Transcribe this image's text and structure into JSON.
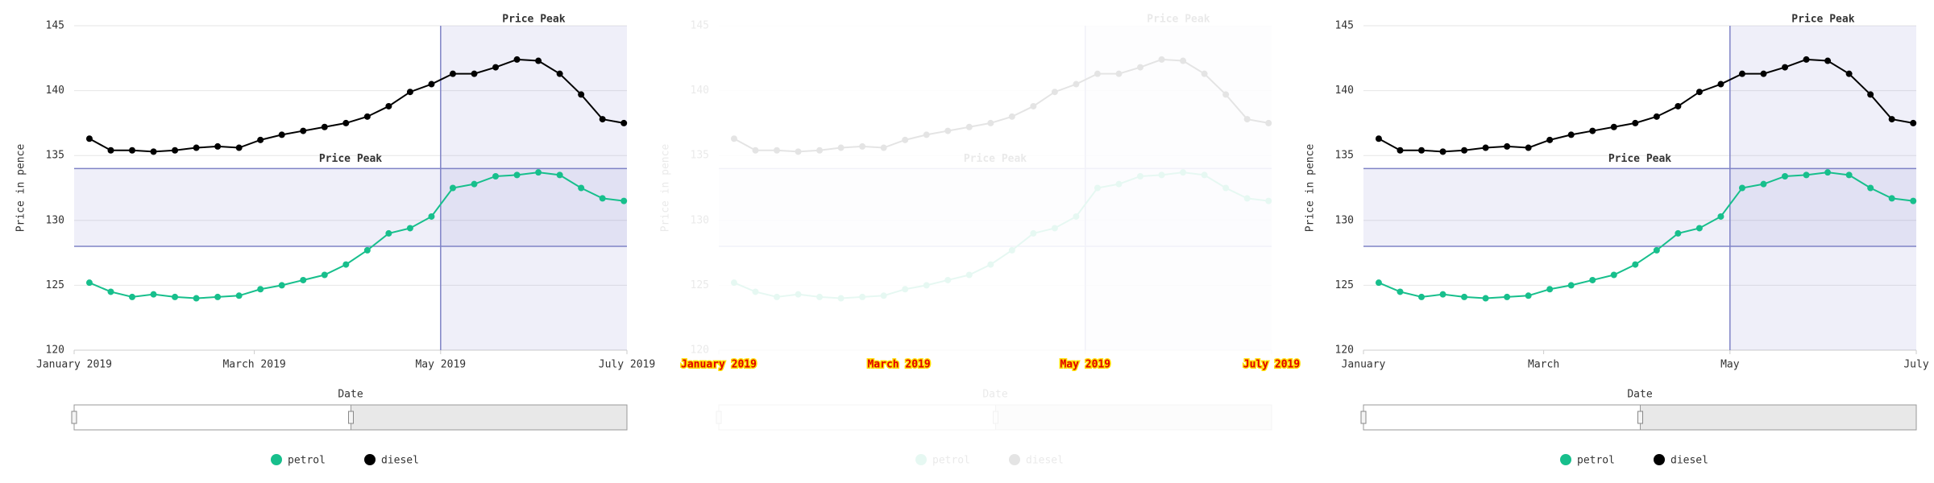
{
  "chart_data": [
    {
      "type": "line",
      "ylabel": "Price in pence",
      "xlabel": "Date",
      "x": [
        "2019-01-06",
        "2019-01-13",
        "2019-01-20",
        "2019-01-27",
        "2019-02-03",
        "2019-02-10",
        "2019-02-17",
        "2019-02-24",
        "2019-03-03",
        "2019-03-10",
        "2019-03-17",
        "2019-03-24",
        "2019-03-31",
        "2019-04-07",
        "2019-04-14",
        "2019-04-21",
        "2019-04-28",
        "2019-05-05",
        "2019-05-12",
        "2019-05-19",
        "2019-05-26",
        "2019-06-02",
        "2019-06-09",
        "2019-06-16",
        "2019-06-23",
        "2019-06-30"
      ],
      "series": [
        {
          "name": "petrol",
          "color": "#17bf8c",
          "values": [
            125.2,
            124.5,
            124.1,
            124.3,
            124.1,
            124.0,
            124.1,
            124.2,
            124.7,
            125.0,
            125.4,
            125.8,
            126.6,
            127.7,
            129.0,
            129.4,
            130.3,
            132.5,
            132.8,
            133.4,
            133.5,
            133.7,
            133.5,
            132.5,
            131.7,
            131.5
          ]
        },
        {
          "name": "diesel",
          "color": "#000000",
          "values": [
            136.3,
            135.4,
            135.4,
            135.3,
            135.4,
            135.6,
            135.7,
            135.6,
            136.2,
            136.6,
            136.9,
            137.2,
            137.5,
            138.0,
            138.8,
            139.9,
            140.5,
            141.3,
            141.3,
            141.8,
            142.4,
            142.3,
            141.3,
            139.7,
            137.8,
            137.5
          ]
        }
      ],
      "xlim": [
        "2019-01-01",
        "2019-07-01"
      ],
      "xticks": [
        {
          "value": "2019-01-01",
          "label": "January 2019"
        },
        {
          "value": "2019-03-01",
          "label": "March 2019"
        },
        {
          "value": "2019-05-01",
          "label": "May 2019"
        },
        {
          "value": "2019-07-01",
          "label": "July 2019"
        }
      ],
      "ylim": [
        120,
        145
      ],
      "yticks": [
        120,
        125,
        130,
        135,
        140,
        145
      ],
      "grid": true,
      "annotations": [
        {
          "type": "x-band",
          "from": "2019-05-01",
          "to": "2019-07-01",
          "label": "Price Peak"
        },
        {
          "type": "y-band",
          "from": 128,
          "to": 134,
          "label": "Price Peak"
        }
      ]
    },
    {
      "type": "line",
      "ylabel": "Price in pence",
      "xlabel": "Date",
      "x": [
        "2019-01-06",
        "2019-01-13",
        "2019-01-20",
        "2019-01-27",
        "2019-02-03",
        "2019-02-10",
        "2019-02-17",
        "2019-02-24",
        "2019-03-03",
        "2019-03-10",
        "2019-03-17",
        "2019-03-24",
        "2019-03-31",
        "2019-04-07",
        "2019-04-14",
        "2019-04-21",
        "2019-04-28",
        "2019-05-05",
        "2019-05-12",
        "2019-05-19",
        "2019-05-26",
        "2019-06-02",
        "2019-06-09",
        "2019-06-16",
        "2019-06-23",
        "2019-06-30"
      ],
      "series": [
        {
          "name": "petrol",
          "color": "#17bf8c",
          "values": [
            125.2,
            124.5,
            124.1,
            124.3,
            124.1,
            124.0,
            124.1,
            124.2,
            124.7,
            125.0,
            125.4,
            125.8,
            126.6,
            127.7,
            129.0,
            129.4,
            130.3,
            132.5,
            132.8,
            133.4,
            133.5,
            133.7,
            133.5,
            132.5,
            131.7,
            131.5
          ]
        },
        {
          "name": "diesel",
          "color": "#000000",
          "values": [
            136.3,
            135.4,
            135.4,
            135.3,
            135.4,
            135.6,
            135.7,
            135.6,
            136.2,
            136.6,
            136.9,
            137.2,
            137.5,
            138.0,
            138.8,
            139.9,
            140.5,
            141.3,
            141.3,
            141.8,
            142.4,
            142.3,
            141.3,
            139.7,
            137.8,
            137.5
          ]
        }
      ],
      "xlim": [
        "2019-01-01",
        "2019-07-01"
      ],
      "xticks": [
        {
          "value": "2019-01-01",
          "label": "January 2019"
        },
        {
          "value": "2019-03-01",
          "label": "March 2019"
        },
        {
          "value": "2019-05-01",
          "label": "May 2019"
        },
        {
          "value": "2019-07-01",
          "label": "July 2019"
        }
      ],
      "ylim": [
        120,
        145
      ],
      "yticks": [
        120,
        125,
        130,
        135,
        140,
        145
      ],
      "grid": true,
      "annotations": [
        {
          "type": "x-band",
          "from": "2019-05-01",
          "to": "2019-07-01",
          "label": "Price Peak"
        },
        {
          "type": "y-band",
          "from": 128,
          "to": 134,
          "label": "Price Peak"
        }
      ]
    },
    {
      "type": "line",
      "ylabel": "Price in pence",
      "xlabel": "Date",
      "x": [
        "2019-01-06",
        "2019-01-13",
        "2019-01-20",
        "2019-01-27",
        "2019-02-03",
        "2019-02-10",
        "2019-02-17",
        "2019-02-24",
        "2019-03-03",
        "2019-03-10",
        "2019-03-17",
        "2019-03-24",
        "2019-03-31",
        "2019-04-07",
        "2019-04-14",
        "2019-04-21",
        "2019-04-28",
        "2019-05-05",
        "2019-05-12",
        "2019-05-19",
        "2019-05-26",
        "2019-06-02",
        "2019-06-09",
        "2019-06-16",
        "2019-06-23",
        "2019-06-30"
      ],
      "series": [
        {
          "name": "petrol",
          "color": "#17bf8c",
          "values": [
            125.2,
            124.5,
            124.1,
            124.3,
            124.1,
            124.0,
            124.1,
            124.2,
            124.7,
            125.0,
            125.4,
            125.8,
            126.6,
            127.7,
            129.0,
            129.4,
            130.3,
            132.5,
            132.8,
            133.4,
            133.5,
            133.7,
            133.5,
            132.5,
            131.7,
            131.5
          ]
        },
        {
          "name": "diesel",
          "color": "#000000",
          "values": [
            136.3,
            135.4,
            135.4,
            135.3,
            135.4,
            135.6,
            135.7,
            135.6,
            136.2,
            136.6,
            136.9,
            137.2,
            137.5,
            138.0,
            138.8,
            139.9,
            140.5,
            141.3,
            141.3,
            141.8,
            142.4,
            142.3,
            141.3,
            139.7,
            137.8,
            137.5
          ]
        }
      ],
      "xlim": [
        "2019-01-01",
        "2019-07-01"
      ],
      "xticks": [
        {
          "value": "2019-01-01",
          "label": "January"
        },
        {
          "value": "2019-03-01",
          "label": "March"
        },
        {
          "value": "2019-05-01",
          "label": "May"
        },
        {
          "value": "2019-07-01",
          "label": "July"
        }
      ],
      "ylim": [
        120,
        145
      ],
      "yticks": [
        120,
        125,
        130,
        135,
        140,
        145
      ],
      "grid": true,
      "annotations": [
        {
          "type": "x-band",
          "from": "2019-05-01",
          "to": "2019-07-01",
          "label": "Price Peak"
        },
        {
          "type": "y-band",
          "from": 128,
          "to": 134,
          "label": "Price Peak"
        }
      ]
    }
  ]
}
